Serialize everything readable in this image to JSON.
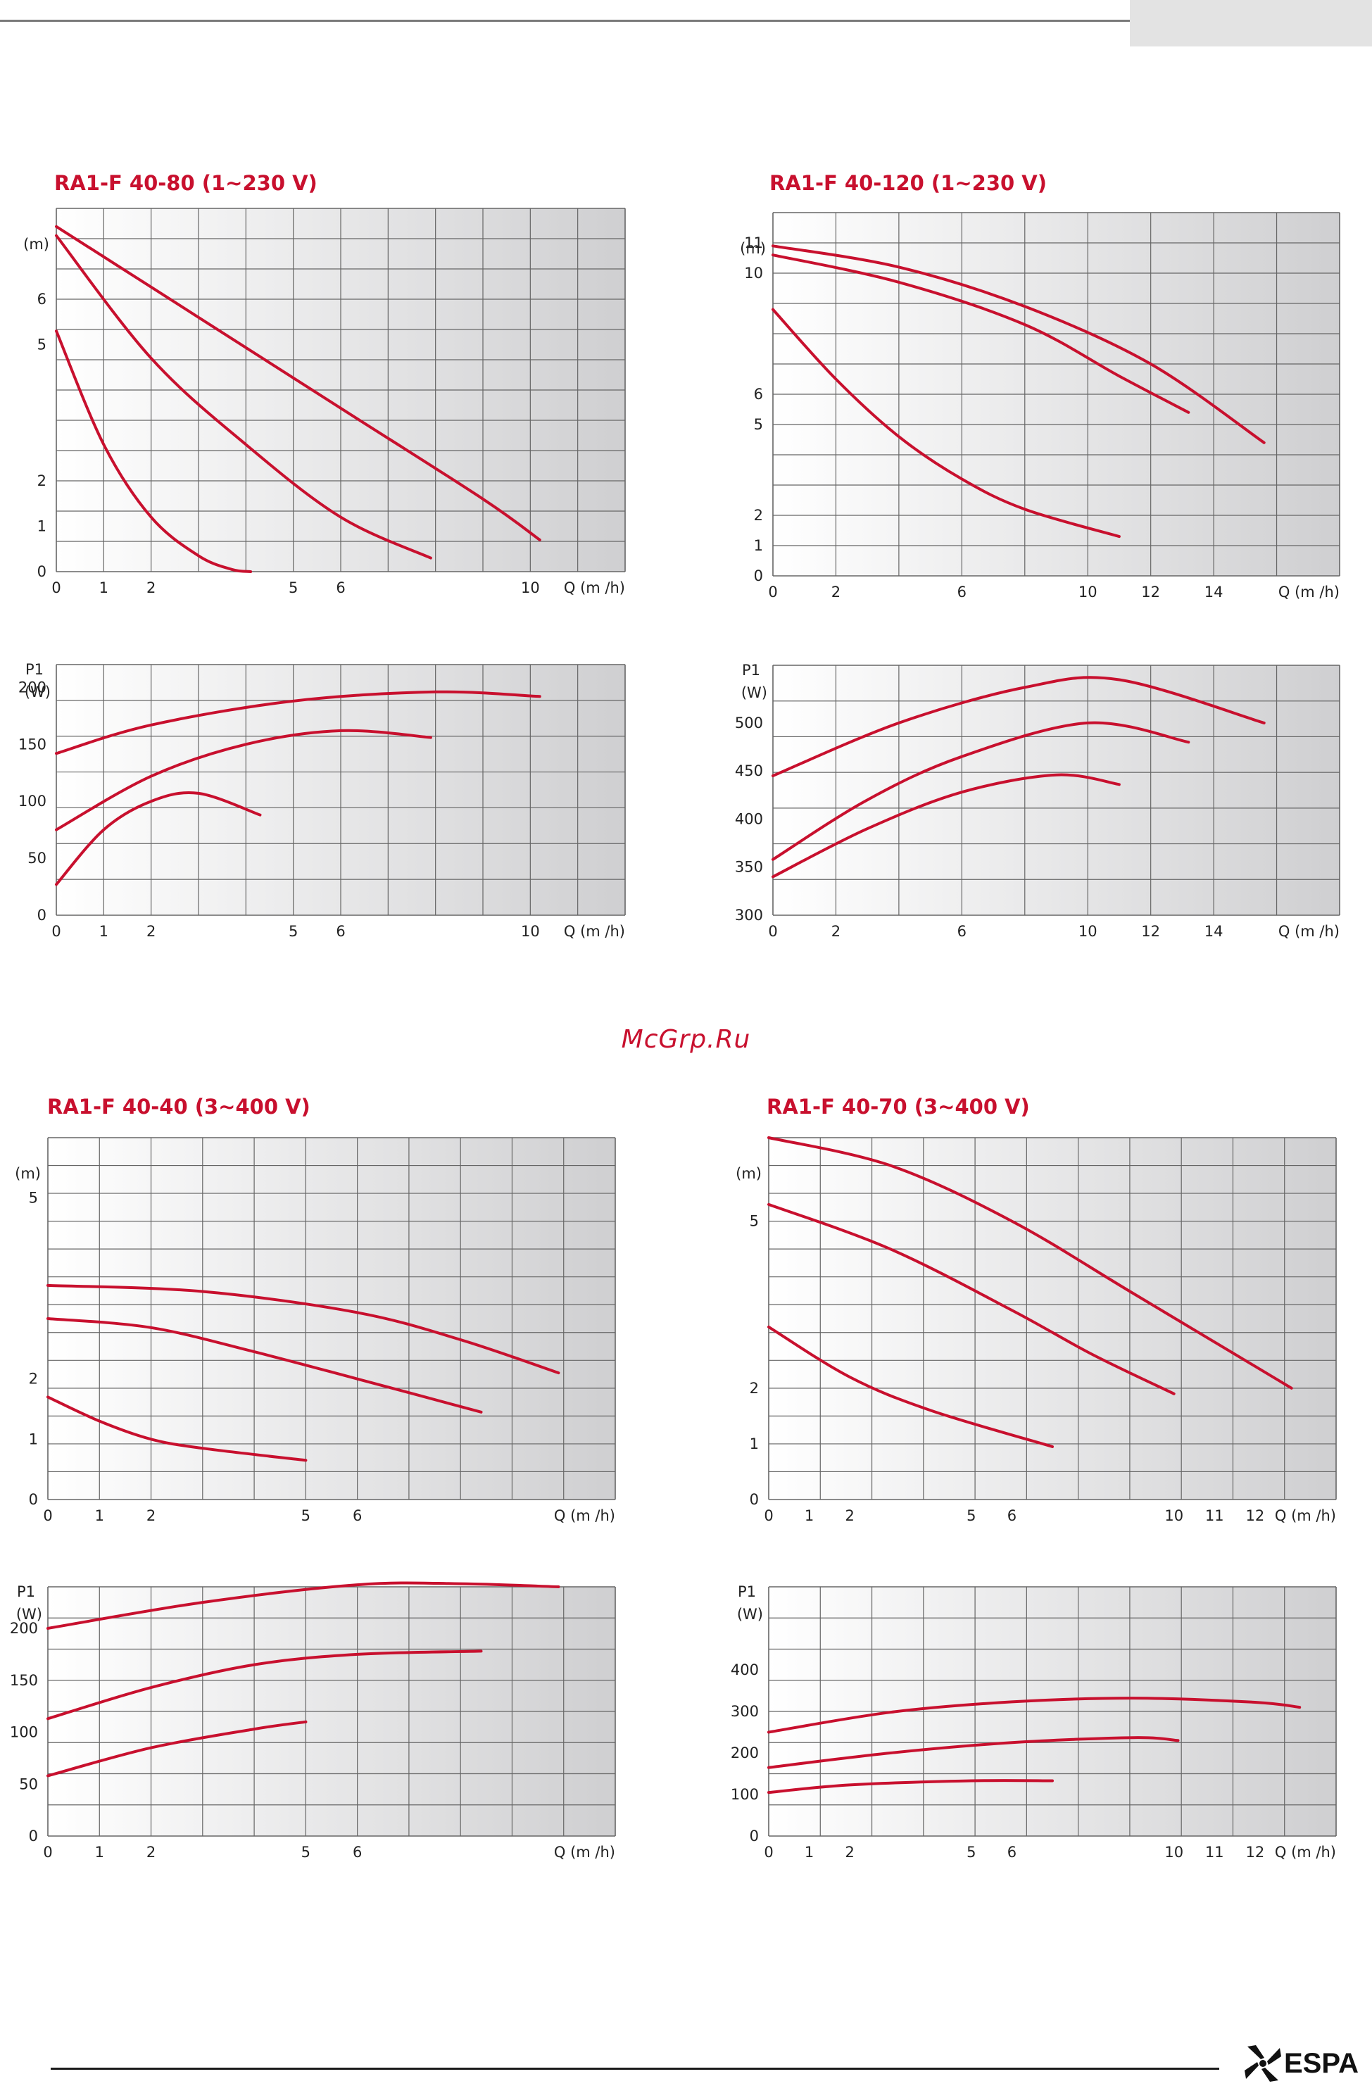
{
  "page": {
    "watermark": "McGrp.Ru",
    "brand": "ESPA"
  },
  "colors": {
    "curve": "#c8102e",
    "grid": "#666666",
    "bg_light": "#ffffff",
    "bg_dark": "#cfcfd1"
  },
  "chart_data": [
    {
      "id": "c1",
      "type": "line",
      "title": "RA1-F 40-80 (1~230 V)",
      "ylabel": "(m)",
      "xlabel": "Q (m /h)",
      "xlim": [
        0,
        12
      ],
      "ylim": [
        0,
        8
      ],
      "x_ticks": [
        "0",
        "1",
        "2",
        "5",
        "6",
        "10"
      ],
      "x_tick_values": [
        0,
        1,
        2,
        5,
        6,
        10
      ],
      "y_ticks": [
        "0",
        "1",
        "2",
        "5",
        "6"
      ],
      "y_tick_values": [
        0,
        1,
        2,
        5,
        6
      ],
      "grid": true,
      "series": [
        {
          "x": [
            0,
            1,
            2,
            3,
            3.7,
            4.1
          ],
          "y": [
            5.3,
            2.8,
            1.2,
            0.35,
            0.05,
            0
          ]
        },
        {
          "x": [
            0,
            2,
            4,
            6,
            7.9
          ],
          "y": [
            7.4,
            4.7,
            2.8,
            1.2,
            0.3
          ]
        },
        {
          "x": [
            0,
            3,
            6,
            9,
            10.2
          ],
          "y": [
            7.6,
            5.6,
            3.6,
            1.6,
            0.7
          ]
        }
      ]
    },
    {
      "id": "c2",
      "type": "line",
      "title": "RA1-F 40-120 (1~230 V)",
      "ylabel": "(m)",
      "xlabel": "Q (m /h)",
      "xlim": [
        0,
        18
      ],
      "ylim": [
        0,
        12
      ],
      "x_ticks": [
        "0",
        "2",
        "6",
        "10",
        "12",
        "14"
      ],
      "x_tick_values": [
        0,
        2,
        6,
        10,
        12,
        14
      ],
      "y_ticks": [
        "0",
        "1",
        "2",
        "5",
        "6",
        "10",
        "11"
      ],
      "y_tick_values": [
        0,
        1,
        2,
        5,
        6,
        10,
        11
      ],
      "grid": true,
      "series": [
        {
          "x": [
            0,
            2,
            4,
            6,
            8,
            11
          ],
          "y": [
            8.8,
            6.5,
            4.6,
            3.2,
            2.2,
            1.3
          ]
        },
        {
          "x": [
            0,
            4,
            8,
            11,
            13.2
          ],
          "y": [
            10.6,
            9.7,
            8.3,
            6.6,
            5.4
          ]
        },
        {
          "x": [
            0,
            4,
            8,
            12,
            15.6
          ],
          "y": [
            10.9,
            10.2,
            8.9,
            7.0,
            4.4
          ]
        }
      ]
    },
    {
      "id": "c3",
      "type": "line",
      "ylabel": "P1 (W)",
      "xlabel": "Q (m /h)",
      "xlim": [
        0,
        12
      ],
      "ylim": [
        0,
        220
      ],
      "x_ticks": [
        "0",
        "1",
        "2",
        "5",
        "6",
        "10"
      ],
      "x_tick_values": [
        0,
        1,
        2,
        5,
        6,
        10
      ],
      "y_ticks": [
        "0",
        "50",
        "100",
        "150",
        "200"
      ],
      "y_tick_values": [
        0,
        50,
        100,
        150,
        200
      ],
      "grid": true,
      "series": [
        {
          "x": [
            0,
            1,
            2,
            3,
            4.3
          ],
          "y": [
            27,
            75,
            100,
            107,
            88
          ]
        },
        {
          "x": [
            0,
            2,
            4,
            6,
            7.9
          ],
          "y": [
            75,
            122,
            150,
            162,
            156
          ]
        },
        {
          "x": [
            0,
            2,
            5,
            8,
            10.2
          ],
          "y": [
            142,
            167,
            188,
            196,
            192
          ]
        }
      ]
    },
    {
      "id": "c4",
      "type": "line",
      "ylabel": "P1 (W)",
      "xlabel": "Q (m /h)",
      "xlim": [
        0,
        18
      ],
      "ylim": [
        300,
        560
      ],
      "x_ticks": [
        "0",
        "2",
        "6",
        "10",
        "12",
        "14"
      ],
      "x_tick_values": [
        0,
        2,
        6,
        10,
        12,
        14
      ],
      "y_ticks": [
        "300",
        "350",
        "400",
        "450",
        "500"
      ],
      "y_tick_values": [
        300,
        350,
        400,
        450,
        500
      ],
      "grid": true,
      "series": [
        {
          "x": [
            0,
            3,
            6,
            9,
            11
          ],
          "y": [
            340,
            390,
            428,
            446,
            436
          ]
        },
        {
          "x": [
            0,
            3,
            6,
            10,
            13.2
          ],
          "y": [
            358,
            420,
            465,
            500,
            480
          ]
        },
        {
          "x": [
            0,
            4,
            8,
            11,
            15.6
          ],
          "y": [
            445,
            500,
            537,
            545,
            500
          ]
        }
      ]
    },
    {
      "id": "c5",
      "type": "line",
      "title": "RA1-F 40-40 (3~400 V)",
      "ylabel": "(m)",
      "xlabel": "Q (m /h)",
      "xlim": [
        0,
        11
      ],
      "ylim": [
        0,
        6
      ],
      "x_ticks": [
        "0",
        "1",
        "2",
        "5",
        "6"
      ],
      "x_tick_values": [
        0,
        1,
        2,
        5,
        6
      ],
      "y_ticks": [
        "0",
        "1",
        "2",
        "5"
      ],
      "y_tick_values": [
        0,
        1,
        2,
        5
      ],
      "grid": true,
      "series": [
        {
          "x": [
            0,
            1,
            2,
            3,
            5
          ],
          "y": [
            1.7,
            1.3,
            1.0,
            0.85,
            0.65
          ]
        },
        {
          "x": [
            0,
            2,
            4,
            6,
            8.4
          ],
          "y": [
            3.0,
            2.85,
            2.45,
            2.0,
            1.45
          ]
        },
        {
          "x": [
            0,
            3,
            6,
            8,
            9.9
          ],
          "y": [
            3.55,
            3.45,
            3.1,
            2.65,
            2.1
          ]
        }
      ]
    },
    {
      "id": "c6",
      "type": "line",
      "title": "RA1-F 40-70 (3~400 V)",
      "ylabel": "(m)",
      "xlabel": "Q (m /h)",
      "xlim": [
        0,
        14
      ],
      "ylim": [
        0,
        6.5
      ],
      "x_ticks": [
        "0",
        "1",
        "2",
        "5",
        "6",
        "10",
        "11",
        "12"
      ],
      "x_tick_values": [
        0,
        1,
        2,
        5,
        6,
        10,
        11,
        12
      ],
      "y_ticks": [
        "0",
        "1",
        "2",
        "5"
      ],
      "y_tick_values": [
        0,
        1,
        2,
        5
      ],
      "grid": true,
      "series": [
        {
          "x": [
            0,
            2,
            4,
            7
          ],
          "y": [
            3.1,
            2.2,
            1.6,
            0.95
          ]
        },
        {
          "x": [
            0,
            3,
            6,
            8,
            10
          ],
          "y": [
            5.3,
            4.5,
            3.4,
            2.6,
            1.9
          ]
        },
        {
          "x": [
            0,
            3,
            6,
            9,
            12.9
          ],
          "y": [
            6.5,
            6.0,
            5.0,
            3.7,
            2.0
          ]
        }
      ]
    },
    {
      "id": "c7",
      "type": "line",
      "ylabel": "P1 (W)",
      "xlabel": "Q (m /h)",
      "xlim": [
        0,
        11
      ],
      "ylim": [
        0,
        240
      ],
      "x_ticks": [
        "0",
        "1",
        "2",
        "5",
        "6"
      ],
      "x_tick_values": [
        0,
        1,
        2,
        5,
        6
      ],
      "y_ticks": [
        "0",
        "50",
        "100",
        "150",
        "200"
      ],
      "y_tick_values": [
        0,
        50,
        100,
        150,
        200
      ],
      "grid": true,
      "series": [
        {
          "x": [
            0,
            2,
            4,
            5
          ],
          "y": [
            58,
            85,
            103,
            110
          ]
        },
        {
          "x": [
            0,
            2,
            4,
            6,
            8.4
          ],
          "y": [
            113,
            143,
            165,
            175,
            178
          ]
        },
        {
          "x": [
            0,
            3,
            6,
            8,
            9.9
          ],
          "y": [
            200,
            225,
            242,
            243,
            240
          ]
        }
      ]
    },
    {
      "id": "c8",
      "type": "line",
      "ylabel": "P1 (W)",
      "xlabel": "Q (m /h)",
      "xlim": [
        0,
        14
      ],
      "ylim": [
        0,
        600
      ],
      "x_ticks": [
        "0",
        "1",
        "2",
        "5",
        "6",
        "10",
        "11",
        "12"
      ],
      "x_tick_values": [
        0,
        1,
        2,
        5,
        6,
        10,
        11,
        12
      ],
      "y_ticks": [
        "0",
        "100",
        "200",
        "300",
        "400"
      ],
      "y_tick_values": [
        0,
        100,
        200,
        300,
        400
      ],
      "grid": true,
      "series": [
        {
          "x": [
            0,
            2,
            5,
            7
          ],
          "y": [
            105,
            123,
            133,
            133
          ]
        },
        {
          "x": [
            0,
            3,
            6,
            9,
            10.1
          ],
          "y": [
            165,
            200,
            225,
            237,
            230
          ]
        },
        {
          "x": [
            0,
            3,
            6,
            9,
            12,
            13.1
          ],
          "y": [
            250,
            298,
            323,
            332,
            322,
            310
          ]
        }
      ]
    }
  ]
}
